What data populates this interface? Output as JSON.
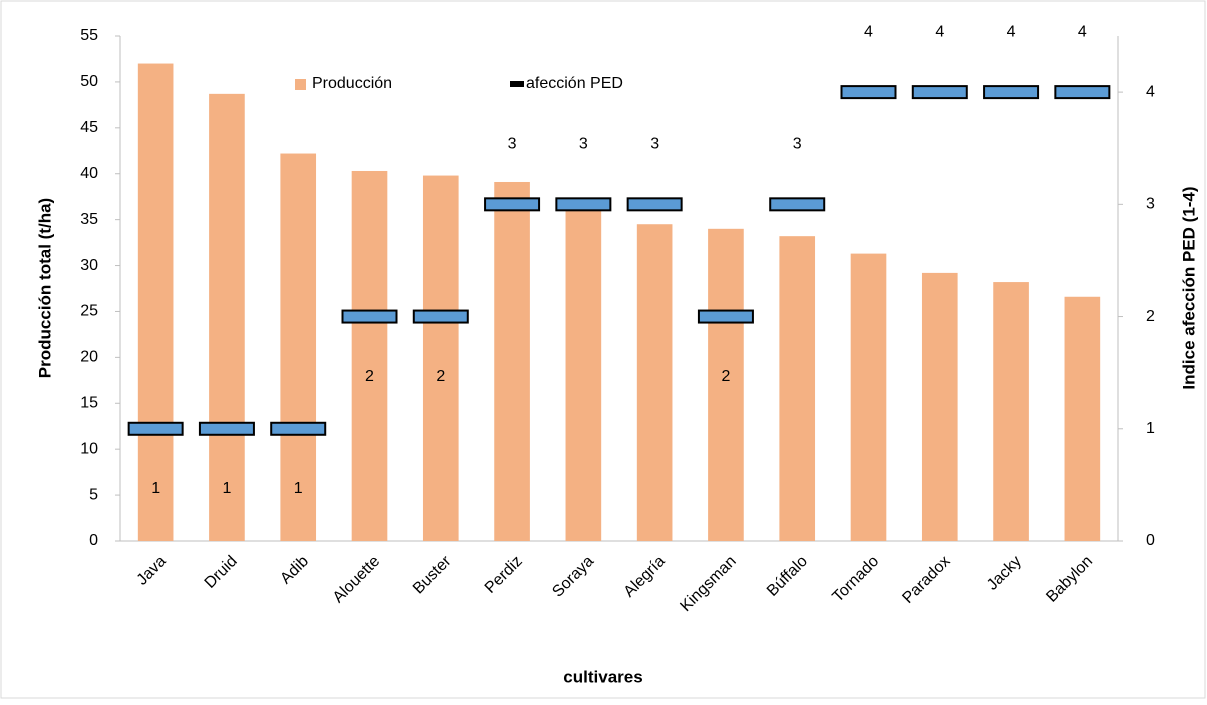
{
  "chart_data": {
    "type": "bar-marker",
    "categories": [
      "Java",
      "Druid",
      "Adib",
      "Alouette",
      "Buster",
      "Perdiz",
      "Soraya",
      "Alegría",
      "Kingsman",
      "Búffalo",
      "Tornado",
      "Paradox",
      "Jacky",
      "Babylon"
    ],
    "series": [
      {
        "name": "Producción",
        "color": "#f4b183",
        "values": [
          52,
          48.7,
          42.2,
          40.3,
          39.8,
          39.1,
          36.5,
          34.5,
          34,
          33.2,
          31.3,
          29.2,
          28.2,
          26.6
        ]
      },
      {
        "name": "afección PED",
        "color": "#5b9bd5",
        "axis": "y2",
        "values": [
          1,
          1,
          1,
          2,
          2,
          3,
          3,
          3,
          2,
          3,
          4,
          4,
          4,
          4
        ]
      }
    ],
    "xlabel": "cultivares",
    "ylabel": "Producción total (t/ha)",
    "y2label": "Indice afección PED (1-4)",
    "ylim": [
      0,
      55
    ],
    "yticks": [
      0,
      5,
      10,
      15,
      20,
      25,
      30,
      35,
      40,
      45,
      50,
      55
    ],
    "y2lim": [
      0,
      4.5
    ],
    "y2ticks": [
      0,
      1,
      2,
      3,
      4
    ],
    "legend": "top"
  }
}
